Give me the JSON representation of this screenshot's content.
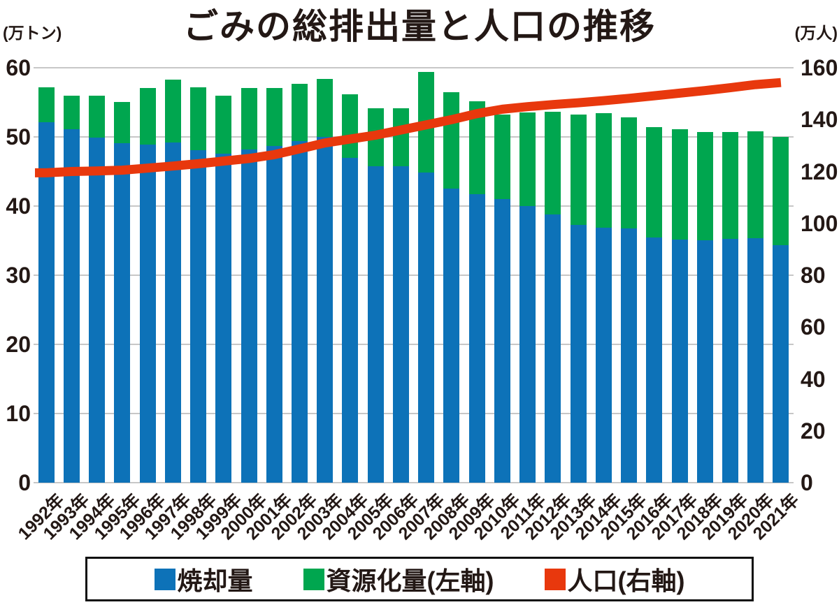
{
  "title": "ごみの総排出量と人口の推移",
  "left_axis": {
    "unit": "(万トン)",
    "ticks": [
      0,
      10,
      20,
      30,
      40,
      50,
      60
    ],
    "max": 60
  },
  "right_axis": {
    "unit": "(万人)",
    "ticks": [
      0,
      20,
      40,
      60,
      80,
      100,
      120,
      140,
      160
    ],
    "max": 160
  },
  "legend": [
    {
      "label": "焼却量",
      "color": "#0d72b8"
    },
    {
      "label": "資源化量(左軸)",
      "color": "#00a64f"
    },
    {
      "label": "人口(右軸)",
      "color": "#e8380d"
    }
  ],
  "chart_data": {
    "type": "bar",
    "subtype": "stacked-bars-with-line",
    "title": "ごみの総排出量と人口の推移",
    "categories": [
      "1992年",
      "1993年",
      "1994年",
      "1995年",
      "1996年",
      "1997年",
      "1998年",
      "1999年",
      "2000年",
      "2001年",
      "2002年",
      "2003年",
      "2004年",
      "2005年",
      "2006年",
      "2007年",
      "2008年",
      "2009年",
      "2010年",
      "2011年",
      "2012年",
      "2013年",
      "2014年",
      "2015年",
      "2016年",
      "2017年",
      "2018年",
      "2019年",
      "2020年",
      "2021年"
    ],
    "series": [
      {
        "name": "焼却量",
        "type": "bar",
        "axis": "left",
        "color": "#0d72b8",
        "values": [
          52.1,
          51.1,
          49.9,
          49.1,
          48.9,
          49.2,
          48.1,
          47.6,
          48.2,
          48.7,
          49.4,
          50.0,
          47.0,
          45.8,
          45.8,
          44.9,
          42.5,
          41.7,
          41.0,
          40.0,
          38.8,
          37.3,
          36.9,
          36.8,
          35.5,
          35.2,
          35.1,
          35.3,
          35.4,
          34.3
        ]
      },
      {
        "name": "資源化量(左軸)",
        "type": "bar",
        "axis": "left",
        "color": "#00a64f",
        "values": [
          5.1,
          4.9,
          6.1,
          6.0,
          8.2,
          9.1,
          9.1,
          8.4,
          8.9,
          8.4,
          8.3,
          8.4,
          9.2,
          8.3,
          8.3,
          14.5,
          14.0,
          13.5,
          12.2,
          13.5,
          14.8,
          15.9,
          16.5,
          16.0,
          15.9,
          15.9,
          15.6,
          15.4,
          15.4,
          15.7
        ]
      },
      {
        "name": "人口(右軸)",
        "type": "line",
        "axis": "right",
        "color": "#e8380d",
        "values": [
          119.5,
          120.0,
          120.2,
          120.5,
          121.3,
          122.1,
          123.0,
          124.0,
          125.0,
          126.5,
          128.7,
          131.0,
          132.5,
          134.0,
          136.0,
          138.0,
          140.0,
          142.3,
          144.0,
          145.0,
          145.8,
          146.5,
          147.3,
          148.2,
          149.2,
          150.2,
          151.2,
          152.3,
          153.5,
          154.3
        ]
      }
    ],
    "left_ylim": [
      0,
      60
    ],
    "right_ylim": [
      0,
      160
    ],
    "grid": true,
    "legend_position": "bottom"
  }
}
